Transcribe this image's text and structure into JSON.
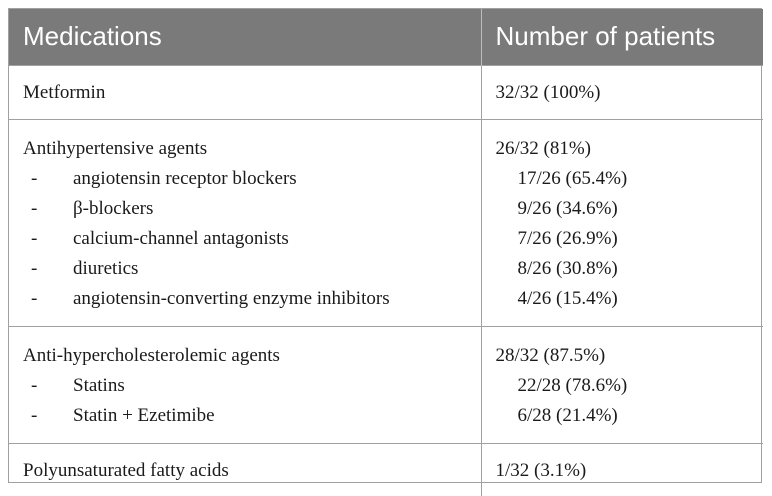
{
  "header": {
    "col1": "Medications",
    "col2": "Number of patients"
  },
  "rows": [
    {
      "name": "Metformin",
      "value": "32/32 (100%)",
      "sub": []
    },
    {
      "name": "Antihypertensive agents",
      "value": "26/32 (81%)",
      "sub": [
        {
          "name": "angiotensin receptor blockers",
          "value": "17/26 (65.4%)"
        },
        {
          "name": "β-blockers",
          "value": "9/26 (34.6%)"
        },
        {
          "name": "calcium-channel antagonists",
          "value": "7/26 (26.9%)"
        },
        {
          "name": "diuretics",
          "value": "8/26 (30.8%)"
        },
        {
          "name": "angiotensin-converting enzyme inhibitors",
          "value": "4/26 (15.4%)"
        }
      ]
    },
    {
      "name": "Anti-hypercholesterolemic agents",
      "value": "28/32 (87.5%)",
      "sub": [
        {
          "name": "Statins",
          "value": "22/28 (78.6%)"
        },
        {
          "name": "Statin + Ezetimibe",
          "value": "6/28 (21.4%)"
        }
      ]
    },
    {
      "name": "Polyunsaturated fatty acids",
      "value": "1/32 (3.1%)",
      "sub": []
    }
  ],
  "bullet": "-"
}
